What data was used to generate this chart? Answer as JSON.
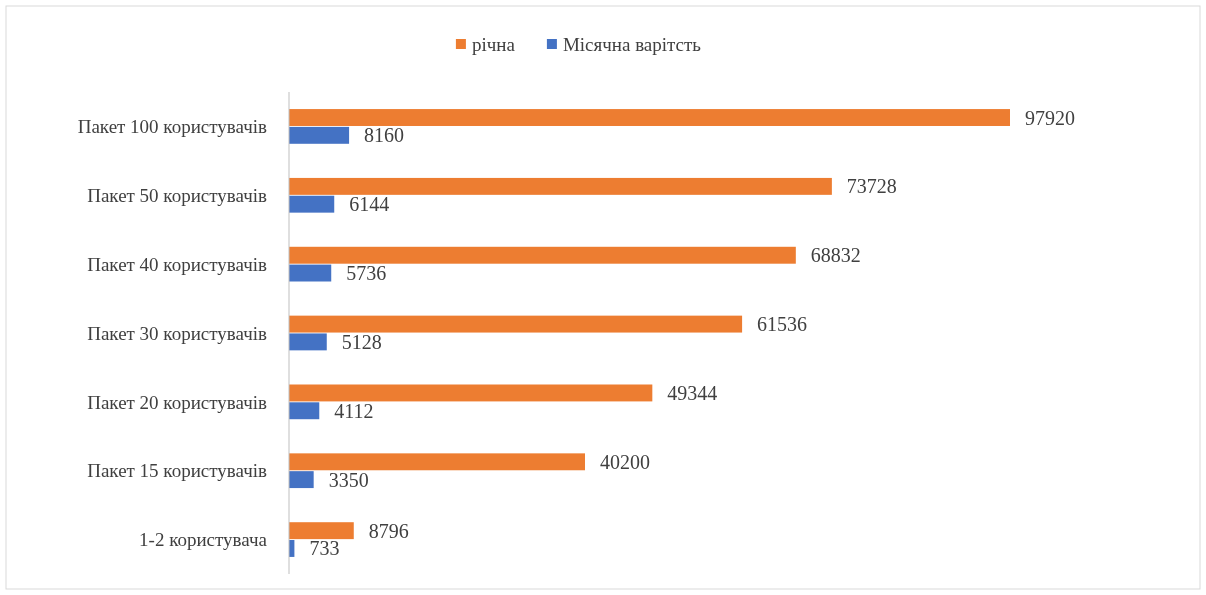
{
  "chart_data": {
    "type": "bar",
    "orientation": "horizontal",
    "categories": [
      "Пакет 100 користувачів",
      "Пакет 50 користувачів",
      "Пакет 40 користувачів",
      "Пакет 30 користувачів",
      "Пакет 20 користувачів",
      "Пакет 15 користувачів",
      "1-2 користувача"
    ],
    "series": [
      {
        "name": "річна",
        "color": "#ed7d31",
        "values": [
          97920,
          73728,
          68832,
          61536,
          49344,
          40200,
          8796
        ]
      },
      {
        "name": "Місячна варітсть",
        "color": "#4472c4",
        "values": [
          8160,
          6144,
          5736,
          5128,
          4112,
          3350,
          733
        ]
      }
    ],
    "data_labels": true,
    "legend": "top"
  }
}
